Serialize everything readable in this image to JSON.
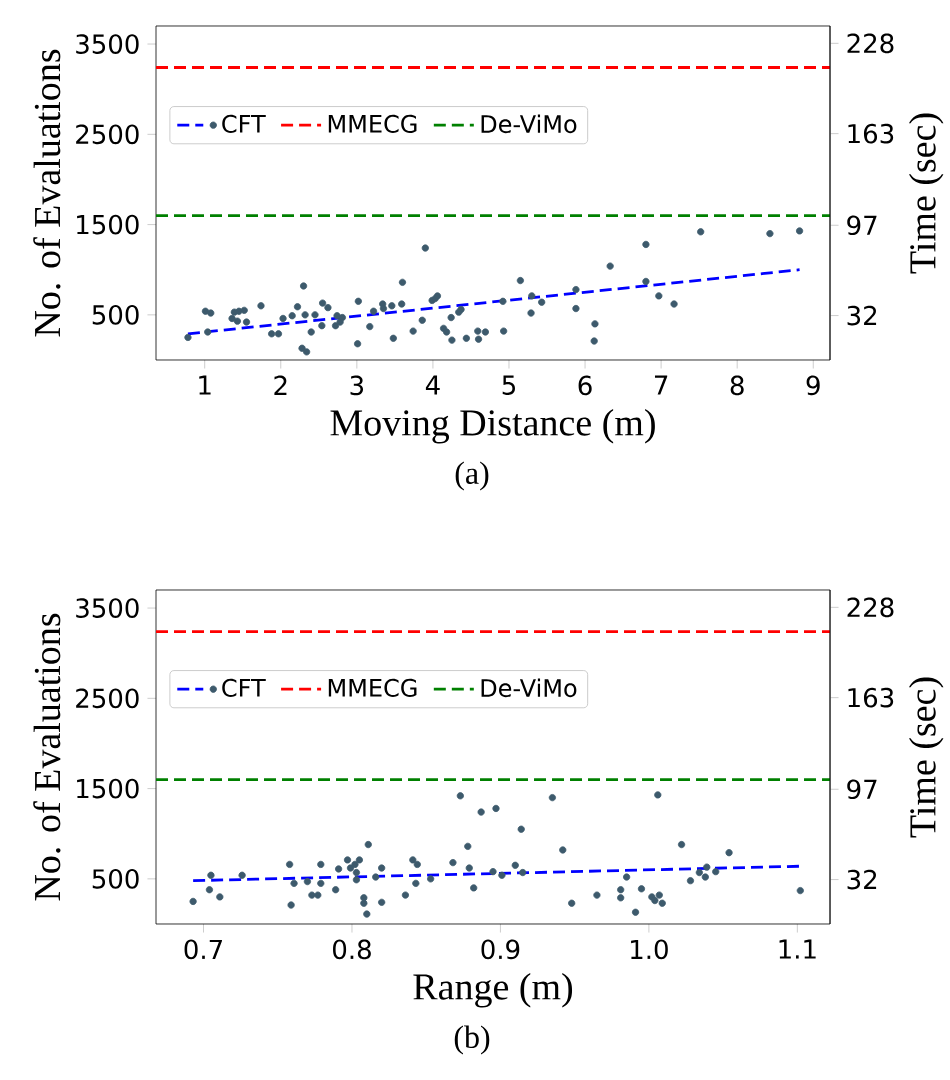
{
  "chart_data": [
    {
      "type": "scatter",
      "xlabel": "Moving Distance (m)",
      "ylabel": "No. of Evaluations",
      "y2label": "Time (sec)",
      "xlim": [
        0.36,
        9.22
      ],
      "xticks": [
        1,
        2,
        3,
        4,
        5,
        6,
        7,
        8,
        9
      ],
      "ylim": [
        0,
        3700
      ],
      "yticks": [
        500,
        1500,
        2500,
        3500
      ],
      "y2lim": [
        0,
        240.5
      ],
      "y2ticks": [
        32,
        97,
        163,
        228
      ],
      "legend": "top left",
      "annotations": [
        "(a)"
      ],
      "series": [
        {
          "name": "CFT",
          "color": "#3d5a6c",
          "marker": "circle",
          "x": [
            0.78,
            1.01,
            1.08,
            1.04,
            1.36,
            1.39,
            1.45,
            1.52,
            1.43,
            1.55,
            1.74,
            1.88,
            1.97,
            2.03,
            2.15,
            2.22,
            2.3,
            2.32,
            2.28,
            2.34,
            2.4,
            2.45,
            2.55,
            2.54,
            2.62,
            2.74,
            2.78,
            2.72,
            2.81,
            3.02,
            3.01,
            3.17,
            3.22,
            3.34,
            3.35,
            3.46,
            3.48,
            3.59,
            3.6,
            3.74,
            3.86,
            3.9,
            3.99,
            4.03,
            4.06,
            4.14,
            4.18,
            4.24,
            4.25,
            4.34,
            4.37,
            4.44,
            4.59,
            4.69,
            4.6,
            4.93,
            4.92,
            5.15,
            5.3,
            5.29,
            5.43,
            5.88,
            5.88,
            6.13,
            6.12,
            6.33,
            6.8,
            6.8,
            6.97,
            7.17,
            7.52,
            8.43,
            8.82
          ],
          "values": [
            250,
            540,
            520,
            310,
            460,
            530,
            540,
            550,
            430,
            420,
            600,
            290,
            290,
            460,
            490,
            590,
            820,
            500,
            130,
            90,
            310,
            500,
            630,
            380,
            580,
            490,
            420,
            380,
            470,
            650,
            180,
            370,
            540,
            620,
            570,
            600,
            240,
            620,
            860,
            320,
            440,
            1240,
            660,
            680,
            710,
            350,
            310,
            470,
            220,
            530,
            560,
            240,
            320,
            310,
            230,
            320,
            650,
            880,
            710,
            520,
            640,
            780,
            570,
            400,
            210,
            1040,
            1280,
            870,
            710,
            620,
            1420,
            1400,
            1430
          ]
        },
        {
          "type": "line",
          "color": "#0000ff",
          "line_style": "dashed",
          "marker": "none",
          "x": [
            0.78,
            8.82
          ],
          "values": [
            290,
            1000
          ]
        }
      ],
      "ref_lines": [
        {
          "axis": "y",
          "value": 3240,
          "label": "MMECG",
          "color": "#ff0000",
          "line_style": "dashed"
        },
        {
          "axis": "y",
          "value": 1600,
          "label": "De-ViMo",
          "color": "#008000",
          "line_style": "dashed"
        }
      ]
    },
    {
      "type": "scatter",
      "xlabel": "Range (m)",
      "ylabel": "No. of Evaluations",
      "y2label": "Time (sec)",
      "xlim": [
        0.668,
        1.122
      ],
      "xticks": [
        0.7,
        0.8,
        0.9,
        {
          "value": 1.0,
          "label": "1.0"
        },
        1.1
      ],
      "ylim": [
        0,
        3700
      ],
      "yticks": [
        500,
        1500,
        2500,
        3500
      ],
      "y2lim": [
        0,
        240.5
      ],
      "y2ticks": [
        32,
        97,
        163,
        228
      ],
      "legend": "top left",
      "annotations": [
        "(b)"
      ],
      "series": [
        {
          "name": "CFT",
          "color": "#3d5a6c",
          "marker": "circle",
          "x": [
            0.693,
            0.704,
            0.705,
            0.711,
            0.726,
            0.758,
            0.759,
            0.761,
            0.77,
            0.773,
            0.777,
            0.779,
            0.779,
            0.789,
            0.791,
            0.797,
            0.799,
            0.802,
            0.803,
            0.803,
            0.805,
            0.811,
            0.808,
            0.808,
            0.81,
            0.816,
            0.82,
            0.82,
            0.836,
            0.841,
            0.844,
            0.843,
            0.853,
            0.868,
            0.873,
            0.878,
            0.879,
            0.882,
            0.887,
            0.897,
            0.895,
            0.901,
            0.91,
            0.914,
            0.915,
            0.935,
            0.942,
            0.948,
            0.965,
            0.981,
            0.981,
            0.985,
            0.991,
            0.995,
            1.002,
            1.004,
            1.007,
            1.006,
            1.009,
            1.022,
            1.028,
            1.034,
            1.038,
            1.039,
            1.045,
            1.054,
            1.102
          ],
          "values": [
            250,
            380,
            540,
            300,
            540,
            660,
            210,
            450,
            470,
            320,
            320,
            660,
            450,
            380,
            610,
            710,
            620,
            660,
            570,
            490,
            710,
            880,
            290,
            230,
            110,
            520,
            620,
            240,
            320,
            710,
            660,
            450,
            500,
            680,
            1420,
            860,
            620,
            400,
            1240,
            1280,
            580,
            540,
            650,
            1050,
            570,
            1400,
            820,
            230,
            320,
            380,
            290,
            520,
            130,
            390,
            300,
            260,
            320,
            1430,
            230,
            880,
            480,
            570,
            520,
            630,
            580,
            790,
            370
          ]
        },
        {
          "type": "line",
          "color": "#0000ff",
          "line_style": "dashed",
          "marker": "none",
          "x": [
            0.693,
            1.102
          ],
          "values": [
            480,
            640
          ]
        }
      ],
      "ref_lines": [
        {
          "axis": "y",
          "value": 3240,
          "label": "MMECG",
          "color": "#ff0000",
          "line_style": "dashed"
        },
        {
          "axis": "y",
          "value": 1600,
          "label": "De-ViMo",
          "color": "#008000",
          "line_style": "dashed"
        }
      ]
    }
  ]
}
